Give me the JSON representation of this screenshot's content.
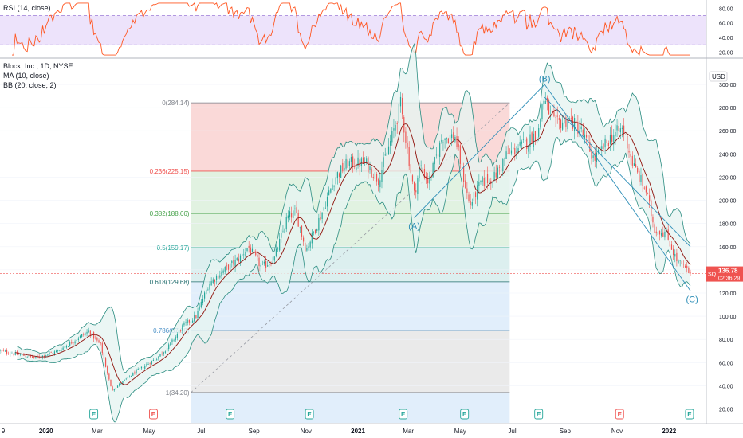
{
  "header": {
    "symbol_title": "Block, Inc., 1D, NYSE",
    "ma_label": "MA (10, close)",
    "bb_label": "BB (20, close, 2)",
    "rsi_label": "RSI (14, close)",
    "currency": "USD",
    "ticker_badge": "SQ",
    "last_price": "136.78",
    "countdown": "02:36:29"
  },
  "colors": {
    "up": "#26a69a",
    "down": "#ef5350",
    "ma": "#8e1b1b",
    "bb": "#2a8c80",
    "bb_fill": "#e6f4f1",
    "rsi": "#ff5722",
    "rsi_band": "#ede3fb",
    "wave": "#2f8fb8",
    "fib_0": "#f9d2d1",
    "fib_1": "#dcf0dc",
    "fib_2": "#d6ecec",
    "fib_3": "#dcebfa",
    "fib_4": "#e6e6e6",
    "badge": "#ef5350"
  },
  "chart_data": {
    "type": "candlestick",
    "title": "Block, Inc., 1D, NYSE",
    "x_range": [
      "2019-11-08",
      "2022-01-26"
    ],
    "ylim": [
      8,
      322
    ],
    "y_ticks": [
      "20.00",
      "40.00",
      "60.00",
      "80.00",
      "100.00",
      "120.00",
      "140.00",
      "160.00",
      "180.00",
      "200.00",
      "220.00",
      "240.00",
      "260.00",
      "280.00",
      "300.00"
    ],
    "y_ticks_values": [
      20,
      40,
      60,
      80,
      100,
      120,
      140,
      160,
      180,
      200,
      220,
      240,
      260,
      280,
      300
    ],
    "x_ticks": [
      {
        "date": "2019-12-20",
        "label": "9"
      },
      {
        "date": "2020-01-01",
        "label": "2020"
      },
      {
        "date": "2020-03-01",
        "label": "Mar"
      },
      {
        "date": "2020-05-01",
        "label": "May"
      },
      {
        "date": "2020-07-01",
        "label": "Jul"
      },
      {
        "date": "2020-09-01",
        "label": "Sep"
      },
      {
        "date": "2020-11-01",
        "label": "Nov"
      },
      {
        "date": "2021-01-01",
        "label": "2021"
      },
      {
        "date": "2021-03-01",
        "label": "Mar"
      },
      {
        "date": "2021-05-01",
        "label": "May"
      },
      {
        "date": "2021-07-01",
        "label": "Jul"
      },
      {
        "date": "2021-09-01",
        "label": "Sep"
      },
      {
        "date": "2021-11-01",
        "label": "Nov"
      },
      {
        "date": "2022-01-01",
        "label": "2022"
      }
    ],
    "price_path": [
      [
        "2019-11-08",
        70
      ],
      [
        "2019-12-20",
        64
      ],
      [
        "2020-01-15",
        70
      ],
      [
        "2020-02-20",
        87
      ],
      [
        "2020-03-05",
        75
      ],
      [
        "2020-03-18",
        36
      ],
      [
        "2020-03-25",
        40
      ],
      [
        "2020-04-15",
        52
      ],
      [
        "2020-05-10",
        64
      ],
      [
        "2020-05-25",
        75
      ],
      [
        "2020-06-10",
        92
      ],
      [
        "2020-06-25",
        100
      ],
      [
        "2020-07-10",
        128
      ],
      [
        "2020-07-25",
        138
      ],
      [
        "2020-08-15",
        150
      ],
      [
        "2020-08-25",
        160
      ],
      [
        "2020-09-10",
        142
      ],
      [
        "2020-09-25",
        150
      ],
      [
        "2020-10-10",
        185
      ],
      [
        "2020-10-20",
        190
      ],
      [
        "2020-11-01",
        157
      ],
      [
        "2020-11-20",
        190
      ],
      [
        "2020-12-05",
        220
      ],
      [
        "2020-12-20",
        232
      ],
      [
        "2021-01-10",
        232
      ],
      [
        "2021-01-25",
        218
      ],
      [
        "2021-02-10",
        255
      ],
      [
        "2021-02-20",
        283
      ],
      [
        "2021-03-08",
        205
      ],
      [
        "2021-03-15",
        230
      ],
      [
        "2021-03-25",
        215
      ],
      [
        "2021-04-10",
        255
      ],
      [
        "2021-04-25",
        255
      ],
      [
        "2021-05-12",
        195
      ],
      [
        "2021-05-25",
        215
      ],
      [
        "2021-06-10",
        220
      ],
      [
        "2021-06-25",
        240
      ],
      [
        "2021-07-15",
        248
      ],
      [
        "2021-08-01",
        260
      ],
      [
        "2021-08-06",
        289
      ],
      [
        "2021-08-20",
        265
      ],
      [
        "2021-09-05",
        270
      ],
      [
        "2021-09-20",
        260
      ],
      [
        "2021-10-05",
        235
      ],
      [
        "2021-10-25",
        255
      ],
      [
        "2021-11-08",
        262
      ],
      [
        "2021-11-20",
        230
      ],
      [
        "2021-12-05",
        208
      ],
      [
        "2021-12-15",
        175
      ],
      [
        "2021-12-28",
        172
      ],
      [
        "2022-01-10",
        148
      ],
      [
        "2022-01-26",
        136.78
      ]
    ],
    "candle_step_days": 2,
    "ma_period": 10,
    "bb_period": 20,
    "bb_mult": 2,
    "fib_levels": [
      {
        "ratio": 0,
        "price": 284.14,
        "label": "0(284.14)"
      },
      {
        "ratio": 0.236,
        "price": 225.15,
        "label": "0.236(225.15)"
      },
      {
        "ratio": 0.382,
        "price": 188.66,
        "label": "0.382(188.66)"
      },
      {
        "ratio": 0.5,
        "price": 159.17,
        "label": "0.5(159.17)"
      },
      {
        "ratio": 0.618,
        "price": 129.68,
        "label": "0.618(129.68)"
      },
      {
        "ratio": 0.786,
        "price": 87.68,
        "label": "0.786(87.68)"
      },
      {
        "ratio": 1,
        "price": 34.2,
        "label": "1(34.20)"
      }
    ],
    "fib_range": {
      "start": "2020-06-19",
      "end": "2021-06-28"
    },
    "trend_line": {
      "from": {
        "date": "2020-06-19",
        "price": 34.2
      },
      "to": {
        "date": "2021-06-28",
        "price": 284.14
      }
    },
    "waves": [
      {
        "label": "(A)",
        "date": "2021-03-08",
        "price": 178
      },
      {
        "label": "(B)",
        "date": "2021-08-08",
        "price": 305
      },
      {
        "label": "(C)",
        "date": "2022-01-28",
        "price": 115
      }
    ],
    "wave_lines": [
      [
        [
          "2021-03-08",
          185
        ],
        [
          "2021-08-08",
          300
        ]
      ],
      [
        [
          "2021-08-08",
          300
        ],
        [
          "2022-01-26",
          122
        ]
      ],
      [
        [
          "2021-08-08",
          289
        ],
        [
          "2022-01-26",
          160
        ]
      ]
    ],
    "current_price": 136.78,
    "earnings_markers": [
      {
        "date": "2020-02-26",
        "kind": "E",
        "color": "green"
      },
      {
        "date": "2020-05-06",
        "kind": "E",
        "color": "red"
      },
      {
        "date": "2020-08-04",
        "kind": "E",
        "color": "green"
      },
      {
        "date": "2020-11-05",
        "kind": "E",
        "color": "green"
      },
      {
        "date": "2021-02-23",
        "kind": "E",
        "color": "green"
      },
      {
        "date": "2021-05-06",
        "kind": "E",
        "color": "green"
      },
      {
        "date": "2021-08-01",
        "kind": "E",
        "color": "green"
      },
      {
        "date": "2021-11-04",
        "kind": "E",
        "color": "red"
      },
      {
        "date": "2022-01-25",
        "kind": "E",
        "color": "green"
      }
    ],
    "rsi": {
      "label": "RSI (14, close)",
      "ylim": [
        15,
        88
      ],
      "upper": 70,
      "lower": 30,
      "ticks": [
        "20.00",
        "40.00",
        "60.00",
        "80.00"
      ],
      "ticks_values": [
        20,
        40,
        60,
        80
      ]
    },
    "legend": [
      "MA (10, close)",
      "BB (20, close, 2)"
    ]
  }
}
